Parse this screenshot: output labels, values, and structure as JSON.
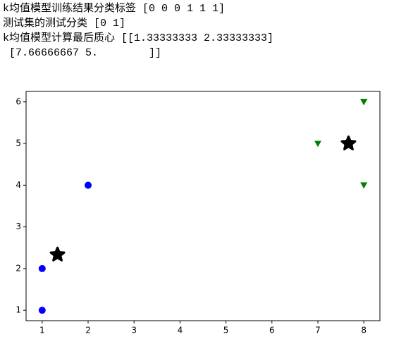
{
  "output_lines": [
    "k均值模型训练结果分类标签 [0 0 0 1 1 1]",
    "测试集的测试分类 [0 1]",
    "k均值模型计算最后质心 [[1.33333333 2.33333333]",
    " [7.66666667 5.        ]]"
  ],
  "chart_data": {
    "type": "scatter",
    "series": [
      {
        "color": "#0000ff",
        "marker": "o",
        "x": [
          1,
          1,
          2
        ],
        "values": [
          1,
          2,
          4
        ]
      },
      {
        "color": "#008000",
        "marker": "v",
        "x": [
          7,
          8,
          8
        ],
        "values": [
          5,
          6,
          4
        ]
      },
      {
        "color": "#000000",
        "marker": "*",
        "x": [
          1.33333333,
          7.66666667
        ],
        "values": [
          2.33333333,
          5
        ]
      }
    ],
    "xlim": [
      0.65,
      8.35
    ],
    "ylim": [
      0.75,
      6.25
    ],
    "xticks": [
      1,
      2,
      3,
      4,
      5,
      6,
      7,
      8
    ],
    "yticks": [
      1,
      2,
      3,
      4,
      5,
      6
    ],
    "grid": false
  }
}
